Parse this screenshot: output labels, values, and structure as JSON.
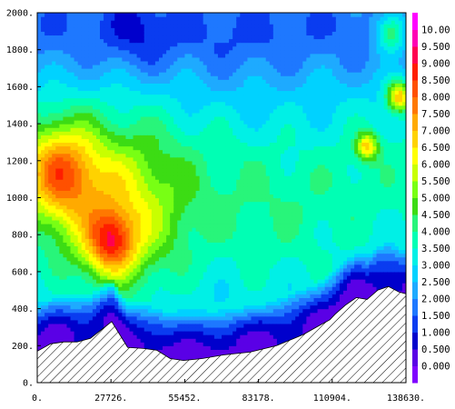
{
  "chart_data": {
    "type": "heatmap",
    "title": "",
    "xlabel": "",
    "ylabel": "",
    "xlim": [
      0,
      138630
    ],
    "ylim": [
      0,
      2000
    ],
    "x_ticks": [
      "0.",
      "27726.",
      "55452.",
      "83178.",
      "110904.",
      "138630."
    ],
    "y_ticks": [
      "0.",
      "200.",
      "400.",
      "600.",
      "800.",
      "1000.",
      "1200.",
      "1400.",
      "1600.",
      "1800.",
      "2000."
    ],
    "x_tick_values": [
      0,
      27726,
      55452,
      83178,
      110904,
      138630
    ],
    "y_tick_values": [
      0,
      200,
      400,
      600,
      800,
      1000,
      1200,
      1400,
      1600,
      1800,
      2000
    ],
    "colorbar": {
      "levels": [
        "0.000",
        "0.500",
        "1.000",
        "1.500",
        "2.000",
        "2.500",
        "3.000",
        "3.500",
        "4.000",
        "4.500",
        "5.000",
        "5.500",
        "6.000",
        "6.500",
        "7.000",
        "7.500",
        "8.000",
        "8.500",
        "9.000",
        "9.500",
        "10.00"
      ],
      "colors": [
        "#7f00ff",
        "#5a00e6",
        "#0000cc",
        "#0a3cf0",
        "#1e78ff",
        "#1eaaff",
        "#00d2ff",
        "#00f0e6",
        "#00ffb4",
        "#28f57a",
        "#3cdc14",
        "#78ff14",
        "#c8ff00",
        "#ffff00",
        "#ffd200",
        "#ffaa00",
        "#ff7800",
        "#ff5000",
        "#ff1e00",
        "#ff0050",
        "#ff00b4",
        "#ff00ff"
      ]
    },
    "terrain": {
      "x": [
        0,
        5000,
        10000,
        15000,
        20000,
        28000,
        34000,
        40000,
        45000,
        50000,
        55000,
        62000,
        70000,
        80000,
        90000,
        100000,
        105000,
        110000,
        112000,
        116000,
        120000,
        124000,
        128000,
        132000,
        136000,
        138630
      ],
      "z": [
        170,
        210,
        220,
        220,
        240,
        330,
        190,
        185,
        175,
        130,
        120,
        130,
        150,
        165,
        200,
        260,
        300,
        340,
        370,
        420,
        460,
        450,
        500,
        520,
        490,
        480
      ]
    },
    "field_sources": [
      {
        "x": 8000,
        "z": 1150,
        "v": 6.5,
        "s": 14000
      },
      {
        "x": 30000,
        "z": 900,
        "v": 5.0,
        "s": 25000
      },
      {
        "x": 28000,
        "z": 760,
        "v": 6.2,
        "s": 9000
      },
      {
        "x": 38000,
        "z": 1900,
        "v": -1.4,
        "s": 12000
      },
      {
        "x": 75000,
        "z": 1650,
        "v": -0.5,
        "s": 22000
      },
      {
        "x": 100000,
        "z": 1300,
        "v": -0.4,
        "s": 16000
      },
      {
        "x": 124000,
        "z": 1280,
        "v": 6.0,
        "s": 4000
      },
      {
        "x": 136000,
        "z": 1550,
        "v": 7.2,
        "s": 4500
      },
      {
        "x": 133000,
        "z": 1900,
        "v": 5.0,
        "s": 6000
      },
      {
        "x": 90000,
        "z": 700,
        "v": 1.0,
        "s": 30000
      }
    ]
  }
}
